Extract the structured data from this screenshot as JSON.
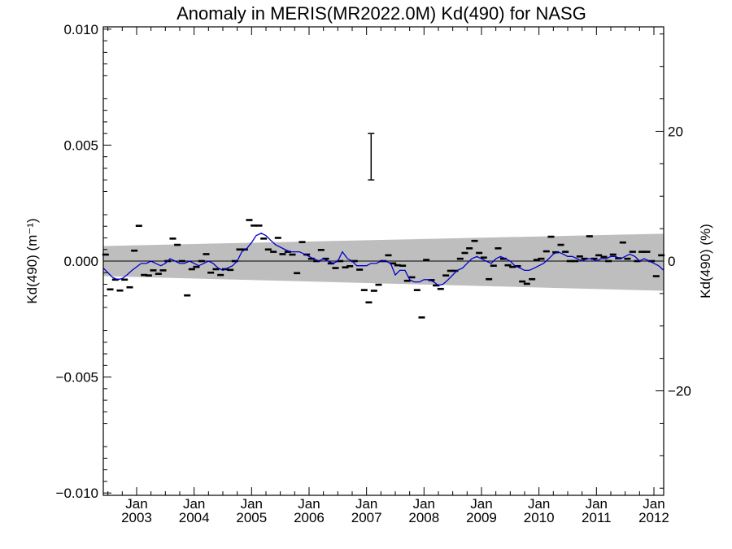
{
  "chart_data": {
    "type": "scatter",
    "title": "Anomaly in MERIS(MR2022.0M) Kd(490) for NASG",
    "ylabel_left": "Kd(490) (m⁻¹)",
    "ylabel_right": "Kd(490) (%)",
    "xlim": [
      2002.42,
      2012.17
    ],
    "ylim": [
      -0.0101,
      0.0101
    ],
    "right_ylim": [
      -36.1,
      36.1
    ],
    "left_yticks": [
      -0.01,
      -0.005,
      0.0,
      0.005,
      0.01
    ],
    "left_ytick_labels": [
      "−0.010",
      "−0.005",
      "0.000",
      "0.005",
      "0.010"
    ],
    "right_yticks": [
      -20,
      0,
      20
    ],
    "right_ytick_labels": [
      "−20",
      "0",
      "20"
    ],
    "xticks": [
      2003.0,
      2004.0,
      2005.0,
      2006.0,
      2007.0,
      2008.0,
      2009.0,
      2010.0,
      2011.0,
      2012.0
    ],
    "xtick_labels_top": [
      "Jan",
      "Jan",
      "Jan",
      "Jan",
      "Jan",
      "Jan",
      "Jan",
      "Jan",
      "Jan",
      "Jan"
    ],
    "xtick_labels_bottom": [
      "2003",
      "2004",
      "2005",
      "2006",
      "2007",
      "2008",
      "2009",
      "2010",
      "2011",
      "2012"
    ],
    "trend_band": {
      "x": [
        2002.42,
        2012.17
      ],
      "upper": [
        0.00065,
        0.00118
      ],
      "lower": [
        -0.00065,
        -0.00128
      ],
      "color": "#bebebe"
    },
    "zero_line": 0.0,
    "error_bar": {
      "x": 2007.08,
      "y_low": 0.0035,
      "y_high": 0.0055
    },
    "series": [
      {
        "type": "monthly_anomaly_markers",
        "color": "#000000",
        "points": [
          [
            2002.46,
            0.00028
          ],
          [
            2002.54,
            -0.00122
          ],
          [
            2002.63,
            -0.0008
          ],
          [
            2002.71,
            -0.00127
          ],
          [
            2002.79,
            -0.0008
          ],
          [
            2002.88,
            -0.00113
          ],
          [
            2002.96,
            0.00045
          ],
          [
            2003.04,
            0.00152
          ],
          [
            2003.13,
            -0.0006
          ],
          [
            2003.21,
            -0.00062
          ],
          [
            2003.29,
            -0.0004
          ],
          [
            2003.38,
            -0.00055
          ],
          [
            2003.46,
            -0.0004
          ],
          [
            2003.54,
            0.0
          ],
          [
            2003.63,
            0.00097
          ],
          [
            2003.71,
            0.0007
          ],
          [
            2003.79,
            0.0
          ],
          [
            2003.88,
            -0.00148
          ],
          [
            2003.96,
            -0.00035
          ],
          [
            2004.04,
            -0.00025
          ],
          [
            2004.13,
            0.0
          ],
          [
            2004.21,
            0.0003
          ],
          [
            2004.29,
            -0.0005
          ],
          [
            2004.38,
            -0.00035
          ],
          [
            2004.46,
            -0.0006
          ],
          [
            2004.54,
            -0.00035
          ],
          [
            2004.63,
            -0.00038
          ],
          [
            2004.71,
            0.0
          ],
          [
            2004.79,
            0.0005
          ],
          [
            2004.88,
            0.0005
          ],
          [
            2004.96,
            0.00177
          ],
          [
            2005.04,
            0.00153
          ],
          [
            2005.13,
            0.00153
          ],
          [
            2005.21,
            0.00097
          ],
          [
            2005.29,
            0.0005
          ],
          [
            2005.38,
            0.0004
          ],
          [
            2005.46,
            0.001
          ],
          [
            2005.54,
            0.0003
          ],
          [
            2005.63,
            0.0004
          ],
          [
            2005.71,
            0.00028
          ],
          [
            2005.79,
            -0.00052
          ],
          [
            2005.88,
            0.00082
          ],
          [
            2005.96,
            0.00028
          ],
          [
            2006.04,
            0.0001
          ],
          [
            2006.13,
            0.0
          ],
          [
            2006.21,
            0.00048
          ],
          [
            2006.29,
            0.0001
          ],
          [
            2006.38,
            -0.0001
          ],
          [
            2006.46,
            -0.0003
          ],
          [
            2006.54,
            0.0
          ],
          [
            2006.63,
            -0.00027
          ],
          [
            2006.71,
            -0.00022
          ],
          [
            2006.79,
            0.0
          ],
          [
            2006.88,
            -0.00037
          ],
          [
            2006.96,
            -0.00125
          ],
          [
            2007.04,
            -0.00178
          ],
          [
            2007.13,
            -0.00128
          ],
          [
            2007.21,
            -0.00102
          ],
          [
            2007.29,
            0.0
          ],
          [
            2007.38,
            0.00025
          ],
          [
            2007.46,
            -0.0001
          ],
          [
            2007.54,
            -0.00018
          ],
          [
            2007.63,
            -0.0002
          ],
          [
            2007.71,
            -0.00085
          ],
          [
            2007.79,
            -0.0007
          ],
          [
            2007.88,
            -0.00125
          ],
          [
            2007.96,
            -0.00243
          ],
          [
            2008.04,
            5e-05
          ],
          [
            2008.13,
            -0.00082
          ],
          [
            2008.21,
            -0.00105
          ],
          [
            2008.29,
            -0.0012
          ],
          [
            2008.38,
            -0.00062
          ],
          [
            2008.46,
            -0.00042
          ],
          [
            2008.54,
            -0.00042
          ],
          [
            2008.63,
            0.0001
          ],
          [
            2008.71,
            0.00035
          ],
          [
            2008.79,
            0.00055
          ],
          [
            2008.88,
            0.00087
          ],
          [
            2008.96,
            0.00035
          ],
          [
            2009.04,
            0.00015
          ],
          [
            2009.13,
            -0.00078
          ],
          [
            2009.21,
            -0.0002
          ],
          [
            2009.29,
            0.00055
          ],
          [
            2009.38,
            0.0001
          ],
          [
            2009.46,
            -0.00018
          ],
          [
            2009.54,
            -0.00025
          ],
          [
            2009.63,
            -0.00022
          ],
          [
            2009.71,
            -0.00088
          ],
          [
            2009.79,
            -0.00098
          ],
          [
            2009.88,
            -0.00078
          ],
          [
            2009.96,
            5e-05
          ],
          [
            2010.04,
            0.0001
          ],
          [
            2010.13,
            0.00042
          ],
          [
            2010.21,
            0.00105
          ],
          [
            2010.29,
            0.00038
          ],
          [
            2010.38,
            0.0007
          ],
          [
            2010.46,
            0.0004
          ],
          [
            2010.54,
            0.0
          ],
          [
            2010.63,
            0.0
          ],
          [
            2010.71,
            0.0002
          ],
          [
            2010.79,
            0.0001
          ],
          [
            2010.88,
            0.00107
          ],
          [
            2010.96,
            0.0001
          ],
          [
            2011.04,
            0.00025
          ],
          [
            2011.13,
            0.00018
          ],
          [
            2011.21,
            0.0
          ],
          [
            2011.29,
            0.00028
          ],
          [
            2011.38,
            0.00012
          ],
          [
            2011.46,
            0.0008
          ],
          [
            2011.54,
            0.0001
          ],
          [
            2011.63,
            0.0004
          ],
          [
            2011.71,
            0.0
          ],
          [
            2011.79,
            0.0004
          ],
          [
            2011.88,
            0.0004
          ],
          [
            2011.96,
            0.0
          ],
          [
            2012.04,
            -0.00065
          ],
          [
            2012.13,
            0.00025
          ]
        ]
      },
      {
        "type": "running_mean",
        "color": "#0000cc",
        "points": [
          [
            2002.42,
            -0.0003
          ],
          [
            2002.5,
            -0.0005
          ],
          [
            2002.58,
            -0.0007
          ],
          [
            2002.67,
            -0.0008
          ],
          [
            2002.75,
            -0.00075
          ],
          [
            2002.83,
            -0.0006
          ],
          [
            2002.92,
            -0.0004
          ],
          [
            2003.0,
            -0.00025
          ],
          [
            2003.08,
            -0.0001
          ],
          [
            2003.17,
            -0.0001
          ],
          [
            2003.25,
            0.0
          ],
          [
            2003.33,
            -0.0001
          ],
          [
            2003.42,
            -0.0002
          ],
          [
            2003.5,
            -0.0001
          ],
          [
            2003.58,
            0.0001
          ],
          [
            2003.67,
            0.0
          ],
          [
            2003.75,
            -0.0001
          ],
          [
            2003.83,
            -0.0001
          ],
          [
            2003.92,
            0.0
          ],
          [
            2004.0,
            -0.0001
          ],
          [
            2004.08,
            -0.0002
          ],
          [
            2004.17,
            -0.0001
          ],
          [
            2004.25,
            0.0
          ],
          [
            2004.33,
            -0.0001
          ],
          [
            2004.42,
            -0.0003
          ],
          [
            2004.5,
            -0.0004
          ],
          [
            2004.58,
            -0.0003
          ],
          [
            2004.67,
            -0.0002
          ],
          [
            2004.75,
            0.0
          ],
          [
            2004.83,
            0.0004
          ],
          [
            2004.92,
            0.00055
          ],
          [
            2005.0,
            0.0008
          ],
          [
            2005.08,
            0.0011
          ],
          [
            2005.17,
            0.0012
          ],
          [
            2005.25,
            0.0011
          ],
          [
            2005.33,
            0.0009
          ],
          [
            2005.42,
            0.0007
          ],
          [
            2005.5,
            0.0006
          ],
          [
            2005.58,
            0.0005
          ],
          [
            2005.67,
            0.0004
          ],
          [
            2005.75,
            0.0004
          ],
          [
            2005.83,
            0.0004
          ],
          [
            2005.92,
            0.0003
          ],
          [
            2006.0,
            0.0002
          ],
          [
            2006.08,
            0.0001
          ],
          [
            2006.17,
            0.0
          ],
          [
            2006.25,
            0.0001
          ],
          [
            2006.33,
            0.0
          ],
          [
            2006.42,
            -0.0001
          ],
          [
            2006.5,
            0.0
          ],
          [
            2006.58,
            0.0004
          ],
          [
            2006.67,
            0.0001
          ],
          [
            2006.75,
            0.0
          ],
          [
            2006.83,
            -0.0002
          ],
          [
            2006.92,
            -0.0002
          ],
          [
            2007.0,
            -0.0002
          ],
          [
            2007.08,
            -0.0001
          ],
          [
            2007.17,
            -0.0001
          ],
          [
            2007.25,
            0.0
          ],
          [
            2007.33,
            0.0
          ],
          [
            2007.42,
            -0.0001
          ],
          [
            2007.5,
            -0.0006
          ],
          [
            2007.58,
            -0.0004
          ],
          [
            2007.67,
            -0.0004
          ],
          [
            2007.75,
            -0.0008
          ],
          [
            2007.83,
            -0.0009
          ],
          [
            2007.92,
            -0.0009
          ],
          [
            2008.0,
            -0.0008
          ],
          [
            2008.08,
            -0.0008
          ],
          [
            2008.17,
            -0.0009
          ],
          [
            2008.25,
            -0.00105
          ],
          [
            2008.33,
            -0.001
          ],
          [
            2008.42,
            -0.0008
          ],
          [
            2008.5,
            -0.0006
          ],
          [
            2008.58,
            -0.0004
          ],
          [
            2008.67,
            -0.0003
          ],
          [
            2008.75,
            -0.0001
          ],
          [
            2008.83,
            0.0001
          ],
          [
            2008.92,
            0.0002
          ],
          [
            2009.0,
            0.0001
          ],
          [
            2009.08,
            0.0
          ],
          [
            2009.17,
            -0.0001
          ],
          [
            2009.25,
            0.0001
          ],
          [
            2009.33,
            0.0002
          ],
          [
            2009.42,
            0.0001
          ],
          [
            2009.5,
            0.0
          ],
          [
            2009.58,
            -0.0002
          ],
          [
            2009.67,
            -0.0003
          ],
          [
            2009.75,
            -0.0004
          ],
          [
            2009.83,
            -0.0004
          ],
          [
            2009.92,
            -0.0003
          ],
          [
            2010.0,
            -0.0002
          ],
          [
            2010.08,
            -0.0001
          ],
          [
            2010.17,
            0.0001
          ],
          [
            2010.25,
            0.0003
          ],
          [
            2010.33,
            0.0004
          ],
          [
            2010.42,
            0.0003
          ],
          [
            2010.5,
            0.0002
          ],
          [
            2010.58,
            0.0002
          ],
          [
            2010.67,
            0.0001
          ],
          [
            2010.75,
            0.0
          ],
          [
            2010.83,
            0.0001
          ],
          [
            2010.92,
            0.0001
          ],
          [
            2011.0,
            0.0
          ],
          [
            2011.08,
            0.0001
          ],
          [
            2011.17,
            0.0001
          ],
          [
            2011.25,
            0.0002
          ],
          [
            2011.33,
            0.0002
          ],
          [
            2011.42,
            0.0001
          ],
          [
            2011.5,
            0.0002
          ],
          [
            2011.58,
            0.0003
          ],
          [
            2011.67,
            0.0002
          ],
          [
            2011.75,
            0.0
          ],
          [
            2011.83,
            0.0001
          ],
          [
            2011.92,
            0.0
          ],
          [
            2012.0,
            -0.0001
          ],
          [
            2012.08,
            -0.0002
          ],
          [
            2012.17,
            -0.0004
          ]
        ]
      }
    ]
  }
}
